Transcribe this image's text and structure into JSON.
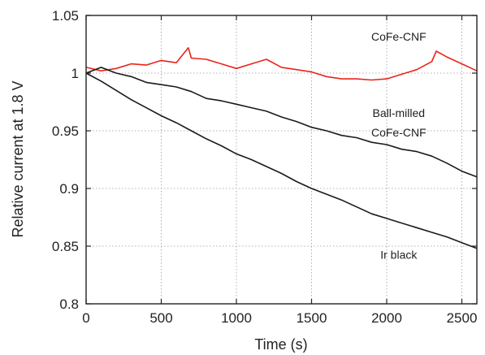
{
  "chart_data": {
    "type": "line",
    "xlabel": "Time (s)",
    "ylabel": "Relative current at 1.8 V",
    "xlim": [
      0,
      2600
    ],
    "ylim": [
      0.8,
      1.05
    ],
    "x_ticks": [
      0,
      500,
      1000,
      1500,
      2000,
      2500
    ],
    "x_tick_labels": [
      "0",
      "500",
      "1000",
      "1500",
      "2000",
      "2500"
    ],
    "y_ticks": [
      0.8,
      0.85,
      0.9,
      0.95,
      1.0,
      1.05
    ],
    "y_tick_labels": [
      "0.8",
      "0.85",
      "0.9",
      "0.95",
      "1",
      "1.05"
    ],
    "grid": true,
    "series": [
      {
        "name": "CoFe-CNF",
        "color": "#e8251c",
        "x": [
          0,
          100,
          200,
          300,
          400,
          500,
          600,
          680,
          700,
          800,
          900,
          1000,
          1100,
          1200,
          1300,
          1400,
          1500,
          1600,
          1700,
          1800,
          1900,
          2000,
          2100,
          2200,
          2300,
          2330,
          2400,
          2500,
          2600
        ],
        "values": [
          1.005,
          1.002,
          1.004,
          1.008,
          1.007,
          1.011,
          1.009,
          1.022,
          1.013,
          1.012,
          1.008,
          1.004,
          1.008,
          1.012,
          1.005,
          1.003,
          1.001,
          0.997,
          0.995,
          0.995,
          0.994,
          0.995,
          0.999,
          1.003,
          1.01,
          1.019,
          1.014,
          1.008,
          1.002
        ]
      },
      {
        "name": "Ball-milled CoFe-CNF",
        "color": "#1a1a1a",
        "x": [
          0,
          100,
          200,
          300,
          400,
          500,
          600,
          700,
          800,
          900,
          1000,
          1100,
          1200,
          1300,
          1400,
          1500,
          1600,
          1700,
          1800,
          1900,
          2000,
          2100,
          2200,
          2300,
          2400,
          2500,
          2600
        ],
        "values": [
          1.0,
          1.005,
          1.0,
          0.997,
          0.992,
          0.99,
          0.988,
          0.984,
          0.978,
          0.976,
          0.973,
          0.97,
          0.967,
          0.962,
          0.958,
          0.953,
          0.95,
          0.946,
          0.944,
          0.94,
          0.938,
          0.934,
          0.932,
          0.928,
          0.922,
          0.915,
          0.91
        ]
      },
      {
        "name": "Ir black",
        "color": "#1a1a1a",
        "x": [
          0,
          100,
          200,
          300,
          400,
          500,
          600,
          700,
          800,
          900,
          1000,
          1100,
          1200,
          1300,
          1400,
          1500,
          1600,
          1700,
          1800,
          1900,
          2000,
          2100,
          2200,
          2300,
          2400,
          2500,
          2600
        ],
        "values": [
          1.0,
          0.993,
          0.985,
          0.977,
          0.97,
          0.963,
          0.957,
          0.95,
          0.943,
          0.937,
          0.93,
          0.925,
          0.919,
          0.913,
          0.906,
          0.9,
          0.895,
          0.89,
          0.884,
          0.878,
          0.874,
          0.87,
          0.866,
          0.862,
          0.858,
          0.853,
          0.848
        ]
      }
    ],
    "annotations": [
      {
        "text": "CoFe-CNF",
        "x": 2080,
        "y": 1.028
      },
      {
        "text": "Ball-milled",
        "x": 2080,
        "y": 0.962
      },
      {
        "text": "CoFe-CNF",
        "x": 2080,
        "y": 0.945
      },
      {
        "text": "Ir black",
        "x": 2080,
        "y": 0.839
      }
    ]
  }
}
